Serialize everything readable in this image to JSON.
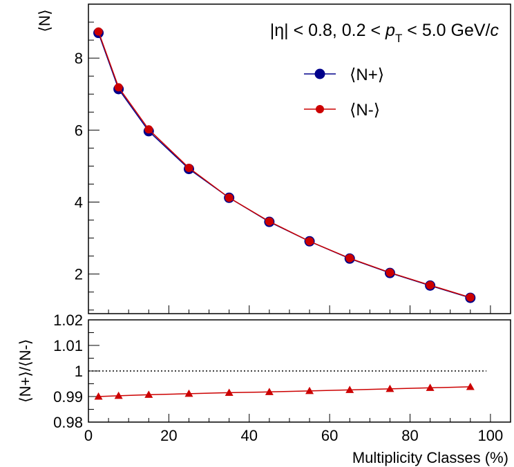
{
  "chart_data": [
    {
      "type": "line",
      "title": "",
      "annotation": {
        "prefix": "|η| < 0.8, 0.2 < ",
        "var": "p",
        "sub": "T",
        "suffix": " < 5.0 GeV/",
        "unit": "c"
      },
      "ylabel": "⟨N⟩",
      "xlabel": "",
      "xlim": [
        0,
        105
      ],
      "ylim": [
        0.9,
        9.5
      ],
      "x_ticks": [
        "0",
        "20",
        "40",
        "60",
        "80",
        "100"
      ],
      "y_ticks": [
        "2",
        "4",
        "6",
        "8"
      ],
      "x": [
        2.5,
        7.5,
        15,
        25,
        35,
        45,
        55,
        65,
        75,
        85,
        95
      ],
      "series": [
        {
          "name": "⟨N+⟩",
          "color": "#00008b",
          "marker": "circle",
          "values": [
            8.7,
            7.14,
            5.97,
            4.92,
            4.12,
            3.45,
            2.91,
            2.43,
            2.03,
            1.68,
            1.34
          ]
        },
        {
          "name": "⟨N-⟩",
          "color": "#cc0000",
          "marker": "circle",
          "values": [
            8.74,
            7.19,
            6.02,
            4.95,
            4.12,
            3.46,
            2.91,
            2.44,
            2.04,
            1.69,
            1.35
          ]
        }
      ],
      "legend_position": "top-right"
    },
    {
      "type": "line",
      "xlabel": "Multiplicity Classes (%)",
      "ylabel": "⟨N+⟩/⟨N-⟩",
      "xlim": [
        0,
        105
      ],
      "ylim": [
        0.98,
        1.02
      ],
      "x_ticks": [
        "0",
        "20",
        "40",
        "60",
        "80",
        "100"
      ],
      "y_ticks": [
        "0.98",
        "0.99",
        "1",
        "1.01",
        "1.02"
      ],
      "reference_line": 1,
      "x": [
        2.5,
        7.5,
        15,
        25,
        35,
        45,
        55,
        65,
        75,
        85,
        95
      ],
      "series": [
        {
          "name": "",
          "color": "#cc0000",
          "marker": "triangle",
          "values": [
            0.99,
            0.9903,
            0.9907,
            0.9911,
            0.9915,
            0.9918,
            0.9922,
            0.9926,
            0.993,
            0.9934,
            0.9938
          ]
        }
      ],
      "legend_position": "none"
    }
  ]
}
